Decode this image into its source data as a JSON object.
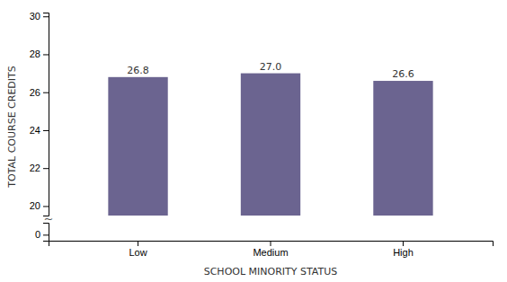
{
  "chart_data": [
    {
      "type": "bar",
      "categories": [
        "Low",
        "Medium",
        "High"
      ],
      "values": [
        26.8,
        27.0,
        26.6
      ],
      "value_labels": [
        "26.8",
        "27.0",
        "26.6"
      ],
      "color": "#6b6490",
      "ylabel": "TOTAL COURSE CREDITS",
      "ylim": [
        19.5,
        30.2
      ],
      "yticks": [
        20,
        22,
        24,
        26,
        28,
        30
      ],
      "data_labels": true,
      "tick_labels": "y",
      "grid": false
    },
    {
      "type": "bar",
      "categories": [
        "Low",
        "Medium",
        "High"
      ],
      "xlabel": "SCHOOL MINORITY STATUS",
      "ylim": [
        -0.5,
        1.0
      ],
      "yticks": [
        0
      ],
      "annotations": [
        "~"
      ],
      "grid": false
    }
  ]
}
